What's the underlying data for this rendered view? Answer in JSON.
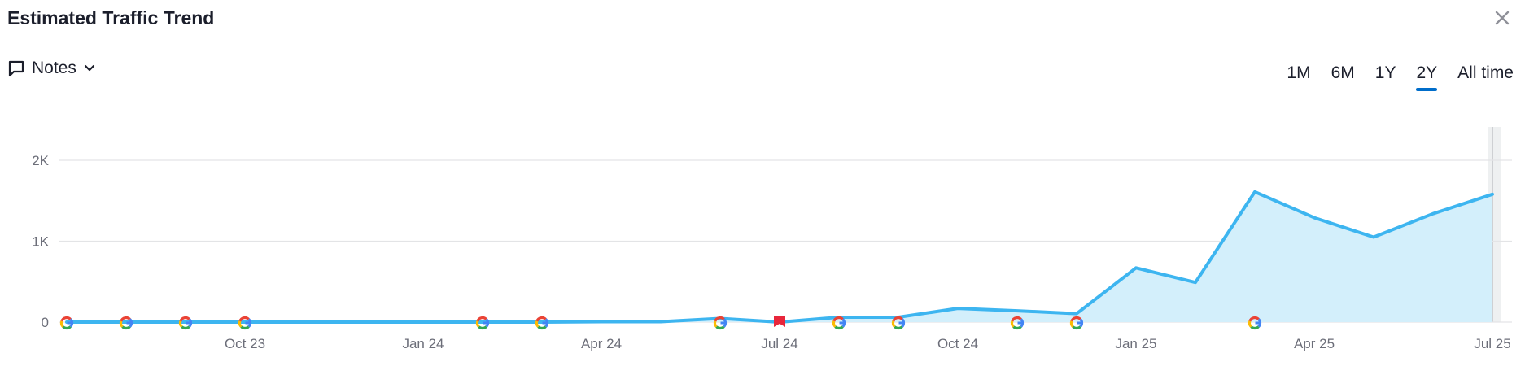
{
  "header": {
    "title": "Estimated Traffic Trend",
    "close_icon": "close-icon"
  },
  "notes": {
    "label": "Notes",
    "icon": "comment-icon",
    "dropdown_icon": "chevron-down-icon"
  },
  "ranges": {
    "items": [
      "1M",
      "6M",
      "1Y",
      "2Y",
      "All time"
    ],
    "active": "2Y",
    "accent": "#006dca"
  },
  "chart_data": {
    "type": "area",
    "title": "Estimated Traffic Trend",
    "xlabel": "",
    "ylabel": "",
    "ylim": [
      0,
      2000
    ],
    "yticks": [
      0,
      1000,
      2000
    ],
    "ytick_labels": [
      "0",
      "1K",
      "2K"
    ],
    "xtick_labels": [
      "Oct 23",
      "Jan 24",
      "Apr 24",
      "Jul 24",
      "Oct 24",
      "Jan 25",
      "Apr 25",
      "Jul 25"
    ],
    "x": [
      "Jul 23",
      "Aug 23",
      "Sep 23",
      "Oct 23",
      "Nov 23",
      "Dec 23",
      "Jan 24",
      "Feb 24",
      "Mar 24",
      "Apr 24",
      "May 24",
      "Jun 24",
      "Jul 24",
      "Aug 24",
      "Sep 24",
      "Oct 24",
      "Nov 24",
      "Dec 24",
      "Jan 25",
      "Feb 25",
      "Mar 25",
      "Apr 25",
      "May 25",
      "Jun 25",
      "Jul 25"
    ],
    "series": [
      {
        "values": [
          0,
          0,
          0,
          0,
          0,
          0,
          0,
          0,
          0,
          5,
          5,
          45,
          0,
          60,
          60,
          170,
          140,
          105,
          670,
          490,
          1610,
          1290,
          1050,
          1340,
          1580
        ]
      }
    ],
    "line_color": "#3db5f0",
    "fill_color": "#d3effb",
    "grid": true,
    "google_update_markers": [
      "Jul 23",
      "Aug 23",
      "Sep 23",
      "Oct 23",
      "Feb 24",
      "Mar 24",
      "Jun 24",
      "Aug 24",
      "Sep 24",
      "Nov 24",
      "Dec 24",
      "Mar 25"
    ],
    "note_marker": "Jul 24",
    "note_marker_color": "#e8263b"
  }
}
